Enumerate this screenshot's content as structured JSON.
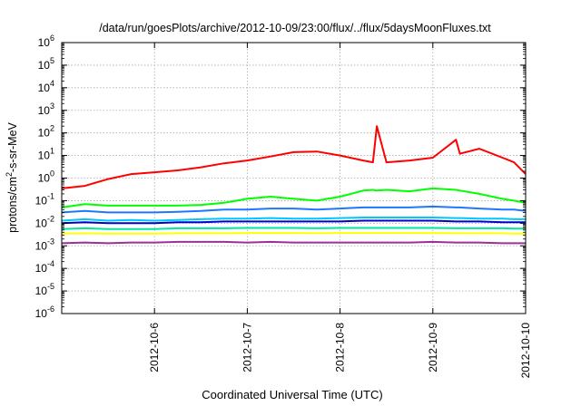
{
  "chart_data": {
    "type": "line",
    "title": "/data/run/goesPlots/archive/2012-10-09/23:00/flux/../flux/5daysMoonFluxes.txt",
    "xlabel": "Coordinated Universal Time (UTC)",
    "ylabel": {
      "pre": "protons/cm",
      "sup": "2",
      "post": "-s-sr-MeV"
    },
    "yscale": "log",
    "ylim_exp": [
      -6,
      6
    ],
    "ytick_exps": [
      "-6",
      "-5",
      "-4",
      "-3",
      "-2",
      "-1",
      "0",
      "1",
      "2",
      "3",
      "4",
      "5",
      "6"
    ],
    "xlim": [
      "2012-10-05 00:00",
      "2012-10-10 00:00"
    ],
    "xticks": [
      "2012-10-6",
      "2012-10-7",
      "2012-10-8",
      "2012-10-9",
      "2012-10-10"
    ],
    "grid": true,
    "x": [
      "2012-10-05 00:00",
      "2012-10-05 06:00",
      "2012-10-05 12:00",
      "2012-10-05 18:00",
      "2012-10-06 00:00",
      "2012-10-06 06:00",
      "2012-10-06 12:00",
      "2012-10-06 18:00",
      "2012-10-07 00:00",
      "2012-10-07 06:00",
      "2012-10-07 12:00",
      "2012-10-07 18:00",
      "2012-10-08 00:00",
      "2012-10-08 06:00",
      "2012-10-08 08:30",
      "2012-10-08 09:30",
      "2012-10-08 12:00",
      "2012-10-08 18:00",
      "2012-10-09 00:00",
      "2012-10-09 06:00",
      "2012-10-09 07:00",
      "2012-10-09 12:00",
      "2012-10-09 18:00",
      "2012-10-09 21:00",
      "2012-10-10 00:00"
    ],
    "series": [
      {
        "color": "#ff0000",
        "values": [
          0.35,
          0.45,
          0.9,
          1.5,
          1.8,
          2.2,
          3.0,
          4.5,
          6.0,
          9.0,
          14.0,
          15.0,
          10.0,
          6.0,
          5.0,
          200,
          5.0,
          6.0,
          8.0,
          50,
          12.0,
          20.0,
          8.0,
          5.0,
          1.5
        ]
      },
      {
        "color": "#00ff00",
        "values": [
          0.05,
          0.07,
          0.06,
          0.06,
          0.06,
          0.06,
          0.065,
          0.08,
          0.12,
          0.15,
          0.12,
          0.1,
          0.15,
          0.28,
          0.3,
          0.28,
          0.3,
          0.26,
          0.35,
          0.3,
          0.28,
          0.2,
          0.12,
          0.1,
          0.08
        ]
      },
      {
        "color": "#1e78ff",
        "values": [
          0.03,
          0.035,
          0.03,
          0.03,
          0.03,
          0.032,
          0.035,
          0.04,
          0.04,
          0.045,
          0.045,
          0.04,
          0.045,
          0.05,
          0.05,
          0.05,
          0.05,
          0.05,
          0.055,
          0.05,
          0.05,
          0.045,
          0.04,
          0.04,
          0.035
        ]
      },
      {
        "color": "#00c8ff",
        "values": [
          0.013,
          0.015,
          0.013,
          0.014,
          0.013,
          0.014,
          0.015,
          0.016,
          0.016,
          0.017,
          0.016,
          0.016,
          0.017,
          0.018,
          0.018,
          0.018,
          0.018,
          0.018,
          0.018,
          0.017,
          0.017,
          0.016,
          0.016,
          0.015,
          0.015
        ]
      },
      {
        "color": "#0000cc",
        "values": [
          0.01,
          0.011,
          0.01,
          0.01,
          0.01,
          0.011,
          0.011,
          0.012,
          0.012,
          0.012,
          0.012,
          0.012,
          0.012,
          0.013,
          0.013,
          0.013,
          0.013,
          0.013,
          0.013,
          0.012,
          0.012,
          0.012,
          0.011,
          0.011,
          0.011
        ]
      },
      {
        "color": "#00e6a0",
        "values": [
          0.0055,
          0.006,
          0.0055,
          0.0055,
          0.0055,
          0.006,
          0.006,
          0.006,
          0.0062,
          0.0062,
          0.0062,
          0.006,
          0.0062,
          0.0062,
          0.0062,
          0.0062,
          0.0062,
          0.0062,
          0.0062,
          0.006,
          0.006,
          0.006,
          0.006,
          0.0058,
          0.0058
        ]
      },
      {
        "color": "#ffff00",
        "values": [
          0.0035,
          0.0036,
          0.0035,
          0.0035,
          0.0035,
          0.0036,
          0.0036,
          0.0036,
          0.0037,
          0.0037,
          0.0037,
          0.0036,
          0.0037,
          0.0037,
          0.0037,
          0.0037,
          0.0037,
          0.0037,
          0.0037,
          0.0036,
          0.0036,
          0.0036,
          0.0036,
          0.0035,
          0.0035
        ]
      },
      {
        "color": "#993399",
        "values": [
          0.0013,
          0.0014,
          0.0013,
          0.0014,
          0.0014,
          0.0015,
          0.0015,
          0.0015,
          0.0014,
          0.0015,
          0.0014,
          0.0014,
          0.0014,
          0.0014,
          0.0014,
          0.0014,
          0.0014,
          0.0014,
          0.0015,
          0.0014,
          0.0014,
          0.0014,
          0.0013,
          0.0013,
          0.0013
        ]
      }
    ]
  }
}
